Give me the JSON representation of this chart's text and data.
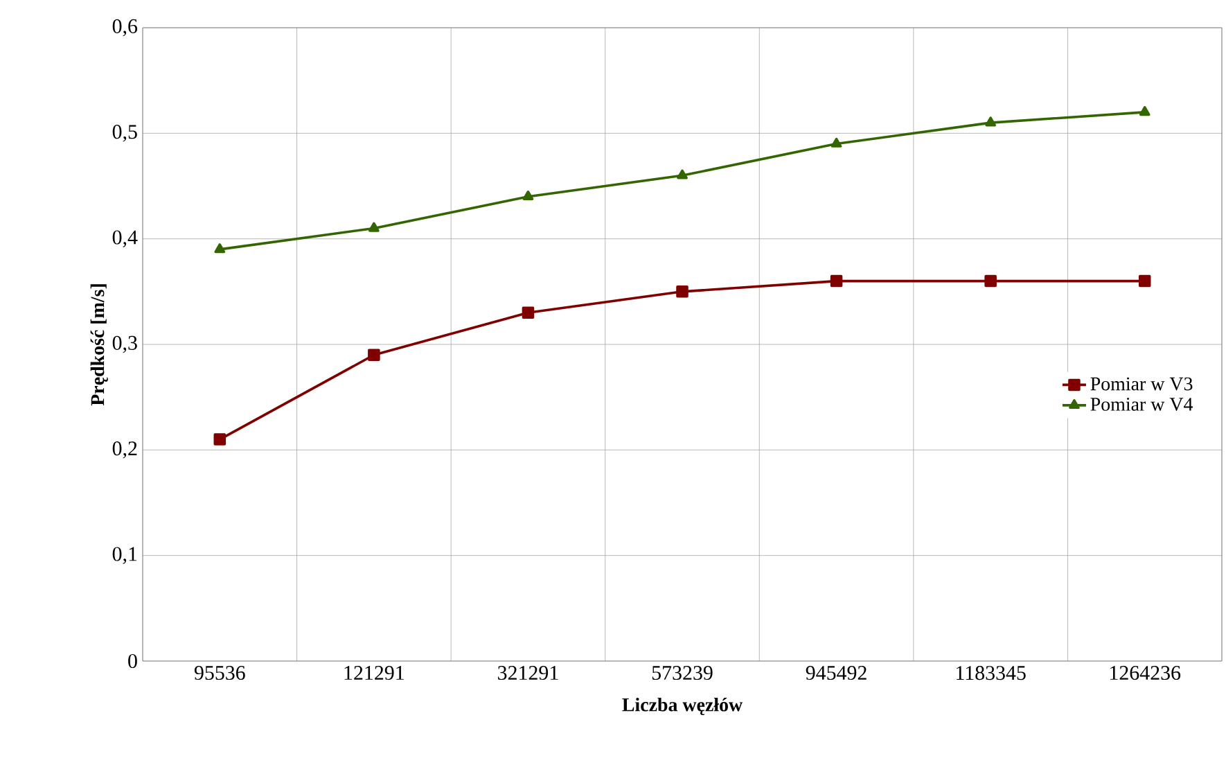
{
  "chart_data": {
    "type": "line",
    "xlabel": "Liczba węzłów",
    "ylabel": "Prędkość [m/s]",
    "categories": [
      "95536",
      "121291",
      "321291",
      "573239",
      "945492",
      "1183345",
      "1264236"
    ],
    "series": [
      {
        "name": "Pomiar w V3",
        "color": "#800000",
        "marker": "square",
        "values": [
          0.21,
          0.29,
          0.33,
          0.35,
          0.36,
          0.36,
          0.36
        ]
      },
      {
        "name": "Pomiar w V4",
        "color": "#336600",
        "marker": "triangle",
        "values": [
          0.39,
          0.41,
          0.44,
          0.46,
          0.49,
          0.51,
          0.52
        ]
      }
    ],
    "ylim": [
      0,
      0.6
    ],
    "yticks": [
      0,
      {
        "value": 0.1,
        "label": "0,1"
      },
      {
        "value": 0.2,
        "label": "0,2"
      },
      {
        "value": 0.3,
        "label": "0,3"
      },
      {
        "value": 0.4,
        "label": "0,4"
      },
      {
        "value": 0.5,
        "label": "0,5"
      },
      {
        "value": 0.6,
        "label": "0,6"
      }
    ],
    "grid": true,
    "legend": "right",
    "line_style": "solid"
  }
}
